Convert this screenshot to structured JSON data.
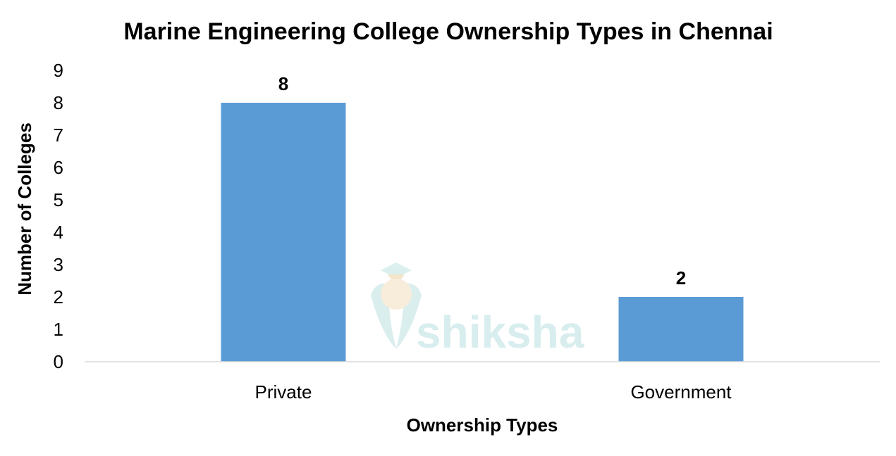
{
  "chart_data": {
    "type": "bar",
    "title": "Marine Engineering College Ownership Types in Chennai",
    "xlabel": "Ownership Types",
    "ylabel": "Number of Colleges",
    "categories": [
      "Private",
      "Government"
    ],
    "values": [
      8,
      2
    ],
    "data_labels": [
      "8",
      "2"
    ],
    "ylim": [
      0,
      9
    ],
    "yticks": [
      "0",
      "1",
      "2",
      "3",
      "4",
      "5",
      "6",
      "7",
      "8",
      "9"
    ],
    "grid": false,
    "legend": "none",
    "bar_color": "#5B9BD5"
  },
  "watermark": {
    "text": "shiksha",
    "color": "#d4ecec"
  }
}
